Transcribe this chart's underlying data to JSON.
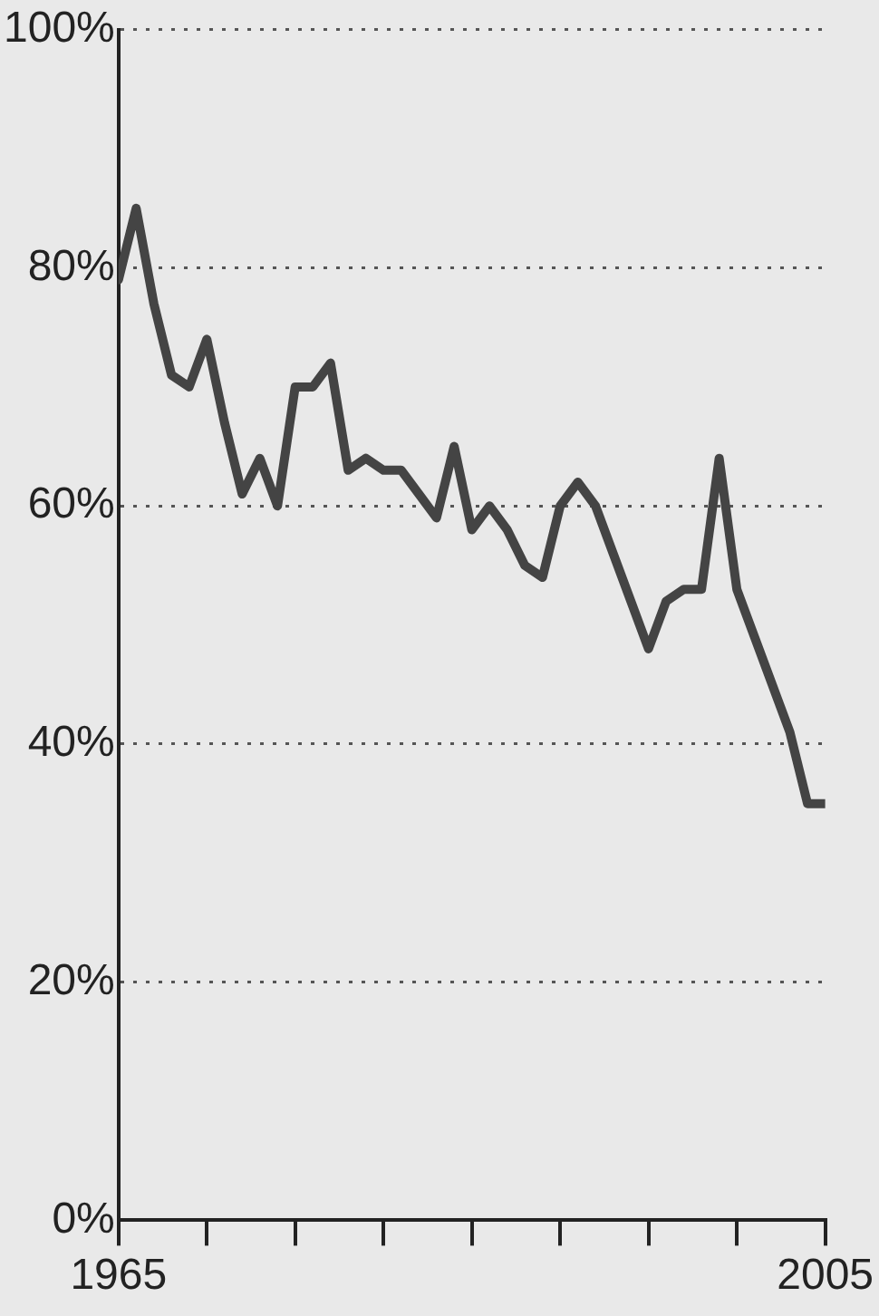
{
  "chart_data": {
    "type": "line",
    "x": [
      1965,
      1966,
      1967,
      1968,
      1969,
      1970,
      1971,
      1972,
      1973,
      1974,
      1975,
      1976,
      1977,
      1978,
      1979,
      1980,
      1981,
      1982,
      1983,
      1984,
      1985,
      1986,
      1987,
      1988,
      1989,
      1990,
      1991,
      1992,
      1993,
      1994,
      1995,
      1996,
      1997,
      1998,
      1999,
      2000,
      2001,
      2002,
      2003,
      2004,
      2005
    ],
    "series": [
      {
        "color": "#444444",
        "values": [
          79,
          85,
          77,
          71,
          70,
          74,
          67,
          61,
          64,
          60,
          70,
          70,
          72,
          63,
          64,
          63,
          63,
          61,
          59,
          65,
          58,
          60,
          58,
          55,
          54,
          60,
          62,
          60,
          56,
          52,
          48,
          52,
          53,
          53,
          64,
          53,
          49,
          45,
          41,
          35,
          35
        ]
      }
    ],
    "xlim": [
      1965,
      2005
    ],
    "xticks": [
      1965,
      {
        "value": 1970,
        "label": null
      },
      {
        "value": 1975,
        "label": null
      },
      {
        "value": 1980,
        "label": null
      },
      {
        "value": 1985,
        "label": null
      },
      {
        "value": 1990,
        "label": null
      },
      {
        "value": 1995,
        "label": null
      },
      {
        "value": 2000,
        "label": null
      },
      2005
    ],
    "ylim": [
      0,
      100
    ],
    "yticks": [
      {
        "value": 0,
        "label": "0%"
      },
      {
        "value": 20,
        "label": "20%"
      },
      {
        "value": 40,
        "label": "40%"
      },
      {
        "value": 60,
        "label": "60%"
      },
      {
        "value": 80,
        "label": "80%"
      },
      {
        "value": 100,
        "label": "100%"
      }
    ],
    "grid": "y",
    "legend": false,
    "marker": "none",
    "line_style": "solid"
  }
}
